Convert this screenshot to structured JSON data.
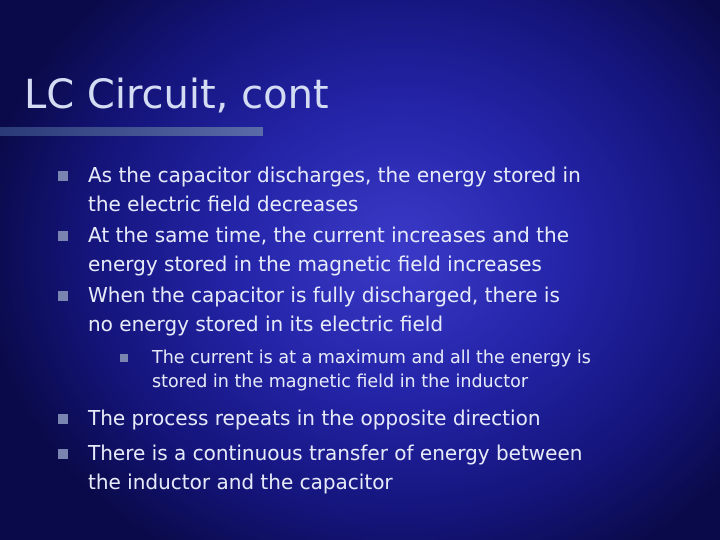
{
  "slide": {
    "title": "LC Circuit, cont",
    "bullets": [
      {
        "lines": [
          "As the capacitor discharges, the energy stored in",
          "the electric field decreases"
        ]
      },
      {
        "lines": [
          "At the same time, the current increases and the",
          "energy stored in the magnetic field increases"
        ]
      },
      {
        "lines": [
          "When the capacitor is fully discharged, there is",
          "no energy stored in its electric field"
        ]
      },
      {
        "lines": [
          "The current is at a maximum and all the energy is",
          "stored in the magnetic field in the inductor"
        ]
      },
      {
        "lines": [
          "The process repeats in the opposite direction"
        ]
      },
      {
        "lines": [
          "There is a continuous transfer of energy between",
          "the inductor and the capacitor"
        ]
      }
    ]
  }
}
